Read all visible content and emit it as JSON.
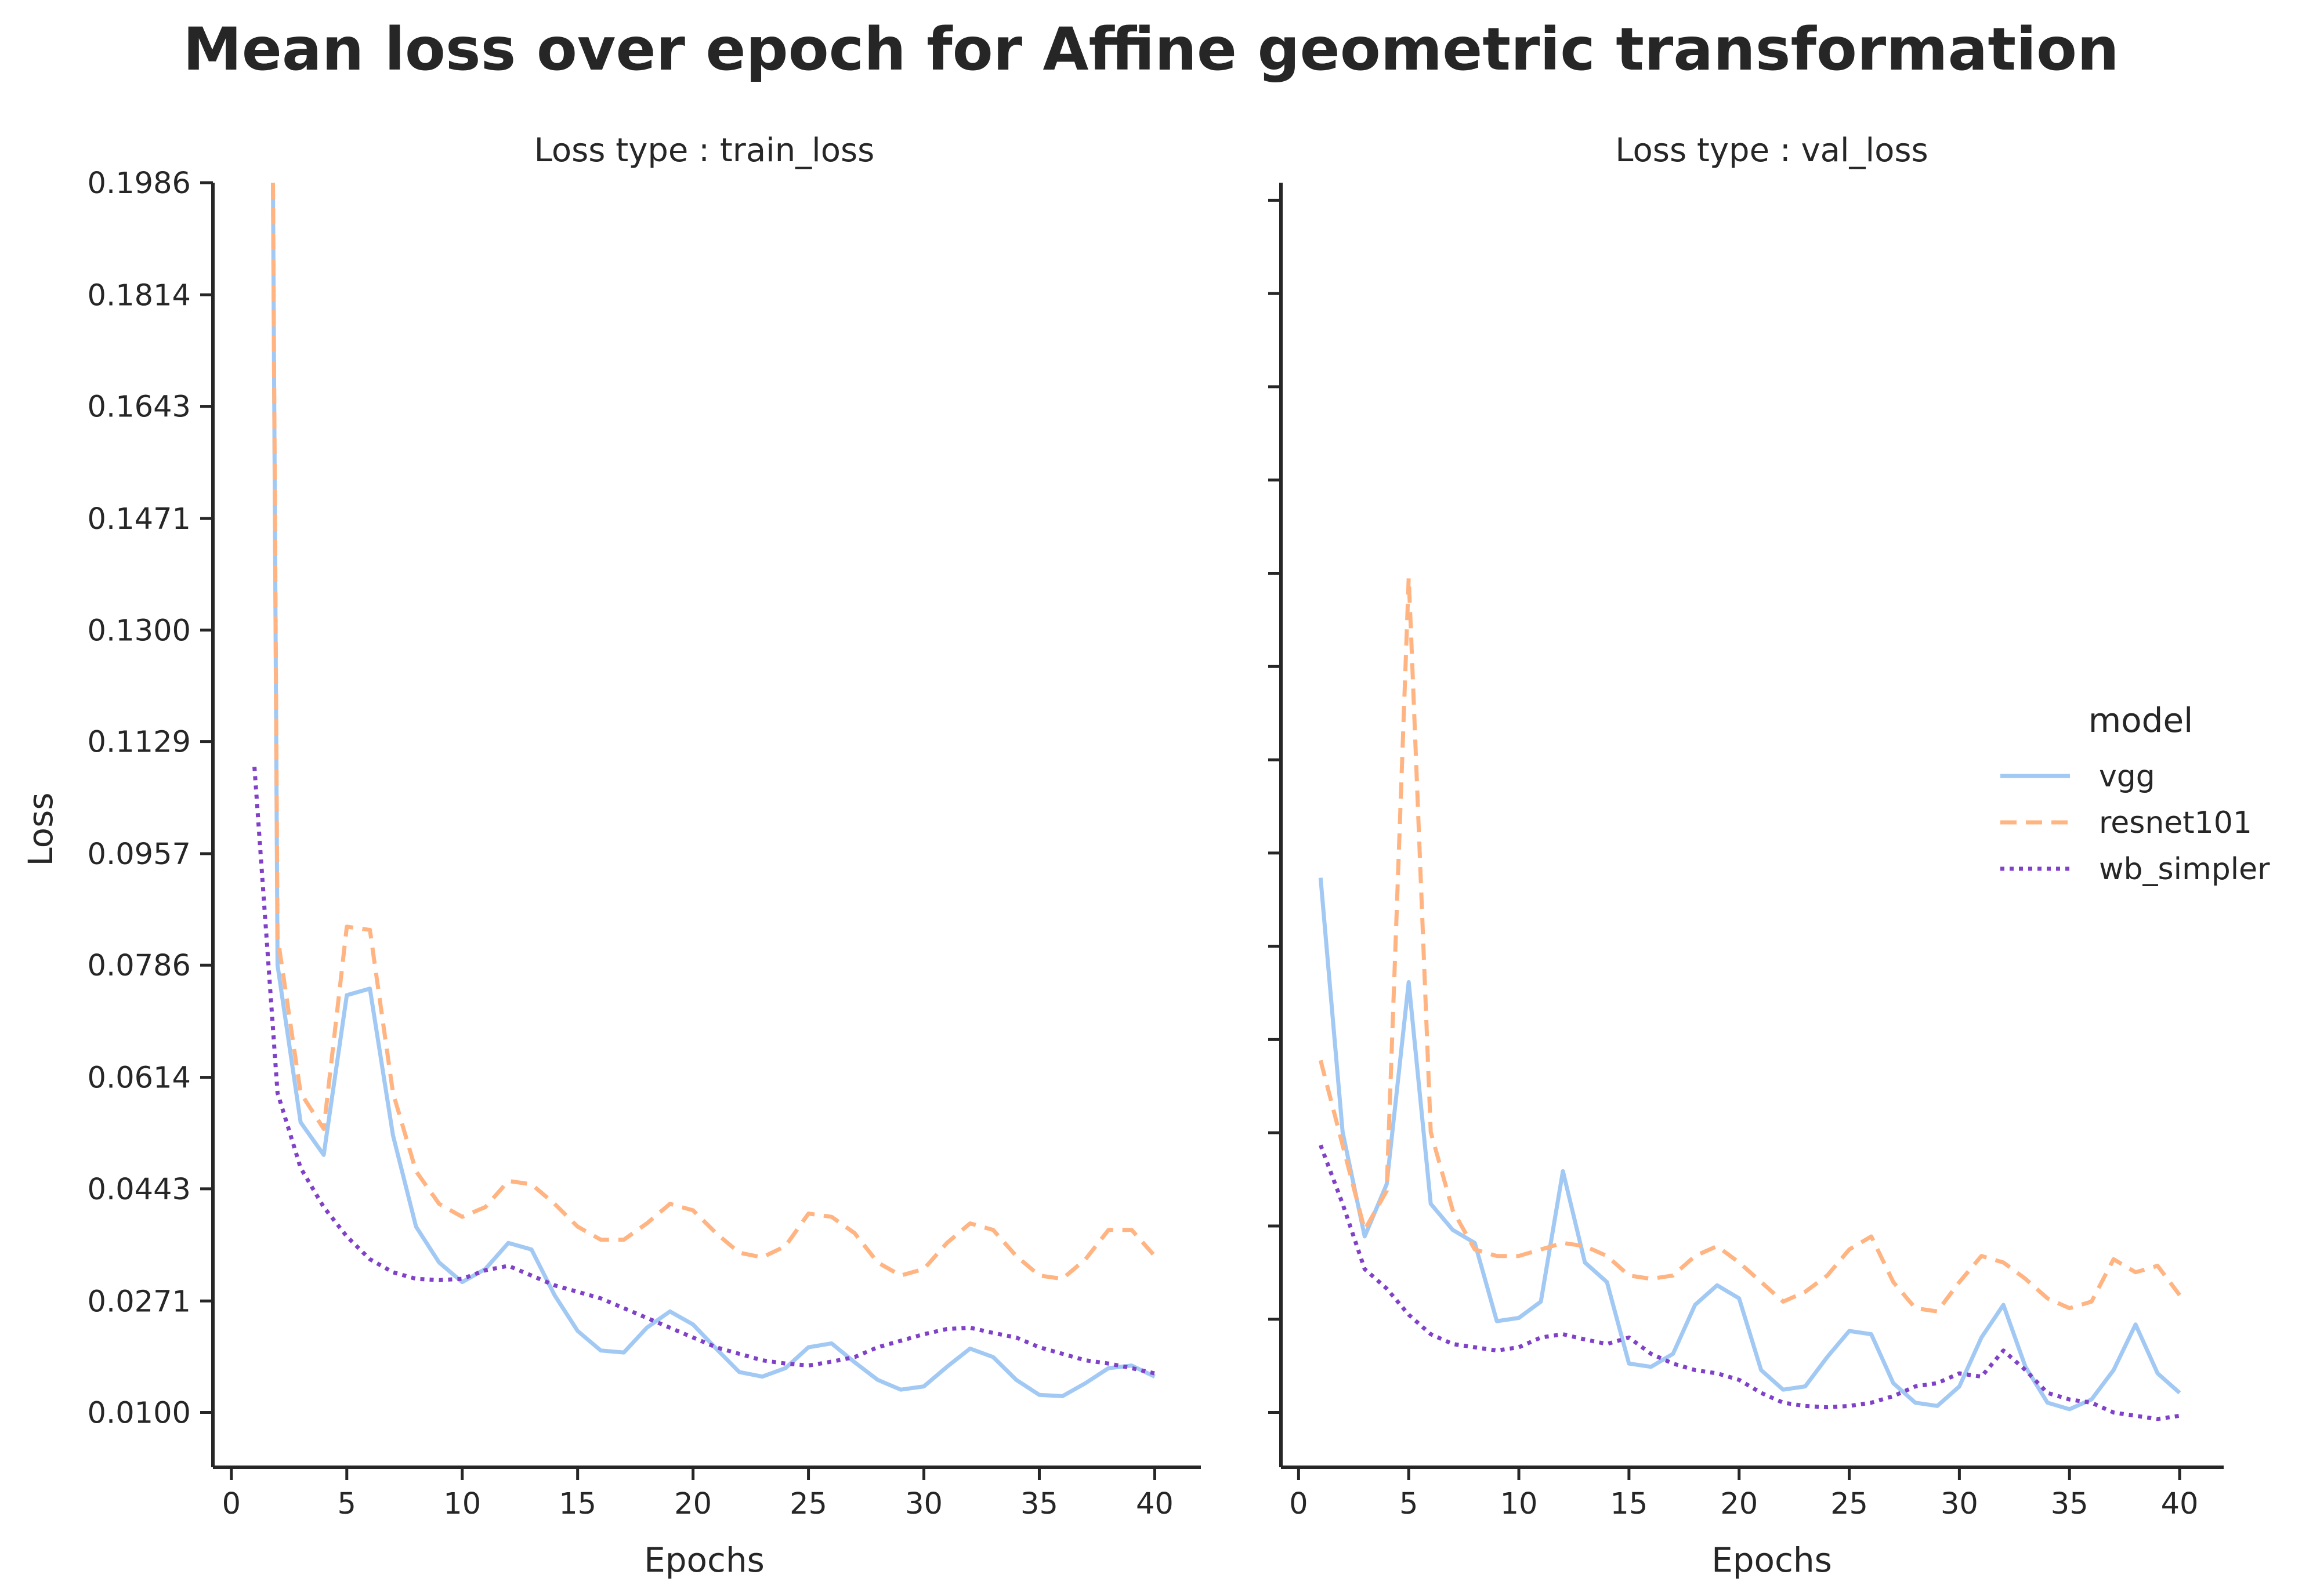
{
  "title": "Mean loss over epoch for Affine geometric transformation",
  "colors": {
    "vgg": "#a1c9f4",
    "resnet101": "#ffb482",
    "wb_simpler": "#8040c8",
    "axis": "#262626"
  },
  "legend": {
    "title": "model",
    "entries": [
      {
        "name": "vgg",
        "style": "solid"
      },
      {
        "name": "resnet101",
        "style": "dashed"
      },
      {
        "name": "wb_simpler",
        "style": "dotted"
      }
    ]
  },
  "chart_data": [
    {
      "type": "line",
      "title": "Loss type : train_loss",
      "xlabel": "Epochs",
      "ylabel": "Loss",
      "xlim": [
        -0.8,
        42
      ],
      "ylim": [
        0.0016,
        0.1986
      ],
      "xticks": [
        0,
        5,
        10,
        15,
        20,
        25,
        30,
        35,
        40
      ],
      "yticks": [
        "0.0100",
        "0.0271",
        "0.0443",
        "0.0614",
        "0.0786",
        "0.0957",
        "0.1129",
        "0.1300",
        "0.1471",
        "0.1643",
        "0.1814",
        "0.1986"
      ],
      "series": [
        {
          "name": "vgg",
          "x": [
            1.8,
            2,
            3,
            4,
            5,
            6,
            7,
            8,
            9,
            10,
            11,
            12,
            13,
            14,
            15,
            16,
            17,
            18,
            19,
            20,
            21,
            22,
            23,
            24,
            25,
            26,
            27,
            28,
            29,
            30,
            31,
            32,
            33,
            34,
            35,
            36,
            37,
            38,
            39,
            40
          ],
          "values": [
            0.1986,
            0.0786,
            0.0545,
            0.0495,
            0.074,
            0.075,
            0.0525,
            0.0385,
            0.033,
            0.03,
            0.032,
            0.036,
            0.035,
            0.028,
            0.0225,
            0.0195,
            0.0192,
            0.023,
            0.0255,
            0.0235,
            0.0198,
            0.0162,
            0.0155,
            0.0168,
            0.02,
            0.0206,
            0.0177,
            0.015,
            0.0135,
            0.014,
            0.017,
            0.0198,
            0.0185,
            0.015,
            0.0127,
            0.0125,
            0.0145,
            0.0168,
            0.0172,
            0.0155
          ]
        },
        {
          "name": "resnet101",
          "x": [
            1.8,
            2,
            3,
            4,
            5,
            6,
            7,
            8,
            9,
            10,
            11,
            12,
            13,
            14,
            15,
            16,
            17,
            18,
            19,
            20,
            21,
            22,
            23,
            24,
            25,
            26,
            27,
            28,
            29,
            30,
            31,
            32,
            33,
            34,
            35,
            36,
            37,
            38,
            39,
            40
          ],
          "values": [
            0.1986,
            0.083,
            0.059,
            0.0535,
            0.0845,
            0.084,
            0.059,
            0.047,
            0.042,
            0.04,
            0.0415,
            0.0455,
            0.045,
            0.042,
            0.0385,
            0.0365,
            0.0365,
            0.039,
            0.042,
            0.041,
            0.0375,
            0.0345,
            0.0338,
            0.0355,
            0.0405,
            0.04,
            0.0375,
            0.033,
            0.031,
            0.032,
            0.036,
            0.039,
            0.038,
            0.034,
            0.031,
            0.0305,
            0.0335,
            0.038,
            0.038,
            0.034
          ]
        },
        {
          "name": "wb_simpler",
          "x": [
            1,
            2,
            3,
            4,
            5,
            6,
            7,
            8,
            9,
            10,
            11,
            12,
            13,
            14,
            15,
            16,
            17,
            18,
            19,
            20,
            21,
            22,
            23,
            24,
            25,
            26,
            27,
            28,
            29,
            30,
            31,
            32,
            33,
            34,
            35,
            36,
            37,
            38,
            39,
            40
          ],
          "values": [
            0.109,
            0.059,
            0.0475,
            0.0415,
            0.037,
            0.0335,
            0.0315,
            0.0305,
            0.0303,
            0.0305,
            0.0318,
            0.0325,
            0.031,
            0.0295,
            0.0285,
            0.0275,
            0.026,
            0.0245,
            0.023,
            0.0215,
            0.02,
            0.019,
            0.018,
            0.0175,
            0.0172,
            0.0178,
            0.0185,
            0.02,
            0.021,
            0.022,
            0.0228,
            0.023,
            0.0222,
            0.0215,
            0.02,
            0.019,
            0.018,
            0.0175,
            0.0168,
            0.016
          ]
        }
      ]
    },
    {
      "type": "line",
      "title": "Loss type : val_loss",
      "xlabel": "Epochs",
      "ylabel": "",
      "xlim": [
        -0.8,
        42
      ],
      "ylim": [
        0.0016,
        0.1986
      ],
      "xticks": [
        0,
        5,
        10,
        15,
        20,
        25,
        30,
        35,
        40
      ],
      "yticks_unlabeled": [
        0.01,
        0.0243,
        0.0386,
        0.0529,
        0.0672,
        0.0815,
        0.0958,
        0.1101,
        0.1244,
        0.1387,
        0.153,
        0.1673,
        0.1816,
        0.1959
      ],
      "series": [
        {
          "name": "vgg",
          "x": [
            1,
            2,
            3,
            4,
            5,
            6,
            7,
            8,
            9,
            10,
            11,
            12,
            13,
            14,
            15,
            16,
            17,
            18,
            19,
            20,
            21,
            22,
            23,
            24,
            25,
            26,
            27,
            28,
            29,
            30,
            31,
            32,
            33,
            34,
            35,
            36,
            37,
            38,
            39,
            40
          ],
          "values": [
            0.092,
            0.053,
            0.037,
            0.045,
            0.076,
            0.042,
            0.038,
            0.036,
            0.024,
            0.0245,
            0.027,
            0.047,
            0.033,
            0.03,
            0.0175,
            0.017,
            0.019,
            0.0265,
            0.0295,
            0.0275,
            0.0165,
            0.0135,
            0.014,
            0.0185,
            0.0225,
            0.022,
            0.0145,
            0.0115,
            0.011,
            0.014,
            0.0215,
            0.0265,
            0.017,
            0.0115,
            0.0105,
            0.012,
            0.0165,
            0.0235,
            0.016,
            0.013
          ]
        },
        {
          "name": "resnet101",
          "x": [
            1,
            2,
            3,
            4,
            5,
            5.1,
            6,
            7,
            8,
            9,
            10,
            11,
            12,
            13,
            14,
            15,
            16,
            17,
            18,
            19,
            20,
            21,
            22,
            23,
            24,
            25,
            26,
            27,
            28,
            29,
            30,
            31,
            32,
            33,
            34,
            35,
            36,
            37,
            38,
            39,
            40
          ],
          "values": [
            0.064,
            0.051,
            0.038,
            0.044,
            0.138,
            0.13,
            0.053,
            0.041,
            0.035,
            0.034,
            0.034,
            0.035,
            0.036,
            0.0355,
            0.034,
            0.031,
            0.0305,
            0.031,
            0.034,
            0.0355,
            0.033,
            0.03,
            0.027,
            0.0285,
            0.031,
            0.035,
            0.037,
            0.03,
            0.026,
            0.0255,
            0.03,
            0.034,
            0.033,
            0.0305,
            0.0275,
            0.026,
            0.027,
            0.0335,
            0.0315,
            0.0325,
            0.028
          ]
        },
        {
          "name": "wb_simpler",
          "x": [
            1,
            2,
            3,
            4,
            5,
            6,
            7,
            8,
            9,
            10,
            11,
            12,
            13,
            14,
            15,
            16,
            17,
            18,
            19,
            20,
            21,
            22,
            23,
            24,
            25,
            26,
            27,
            28,
            29,
            30,
            31,
            32,
            33,
            34,
            35,
            36,
            37,
            38,
            39,
            40
          ],
          "values": [
            0.051,
            0.042,
            0.032,
            0.029,
            0.025,
            0.022,
            0.0205,
            0.02,
            0.0195,
            0.02,
            0.0215,
            0.022,
            0.0212,
            0.0205,
            0.0215,
            0.019,
            0.0175,
            0.0165,
            0.016,
            0.015,
            0.013,
            0.0115,
            0.011,
            0.0108,
            0.011,
            0.0115,
            0.0125,
            0.014,
            0.0145,
            0.016,
            0.0155,
            0.0195,
            0.0165,
            0.013,
            0.012,
            0.0115,
            0.01,
            0.0095,
            0.009,
            0.0095
          ]
        }
      ]
    }
  ]
}
